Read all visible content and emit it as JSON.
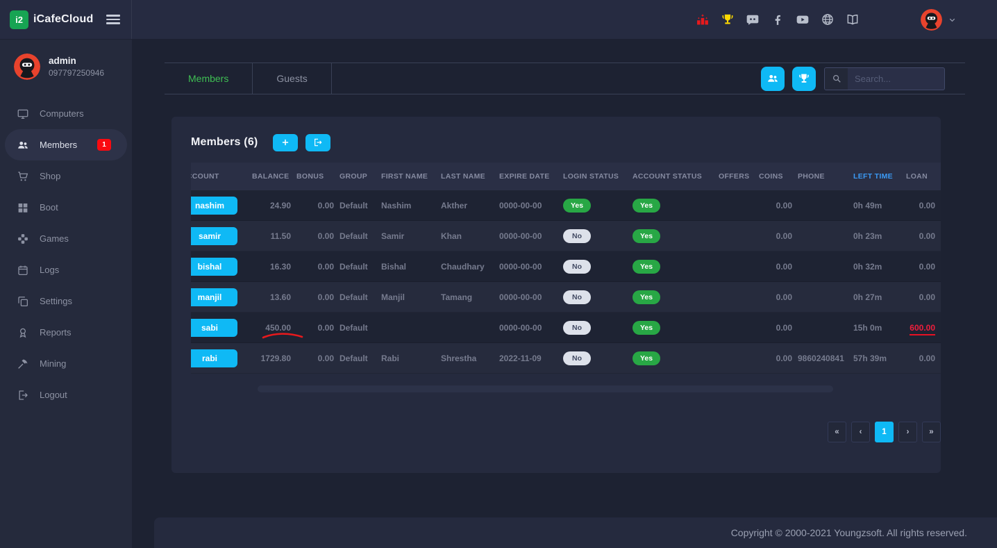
{
  "brand": {
    "name": "iCafeCloud",
    "logo_text": "i2"
  },
  "topbar": {
    "icons": [
      {
        "name": "ranking-icon",
        "color": "#e8191c"
      },
      {
        "name": "trophy-icon",
        "color": "#ffd900"
      },
      {
        "name": "discord-icon",
        "color": "#b9bfcc"
      },
      {
        "name": "facebook-icon",
        "color": "#b9bfcc"
      },
      {
        "name": "youtube-icon",
        "color": "#b9bfcc"
      },
      {
        "name": "globe-icon",
        "color": "#b9bfcc"
      },
      {
        "name": "book-icon",
        "color": "#b9bfcc"
      }
    ]
  },
  "user": {
    "name": "admin",
    "phone": "097797250946"
  },
  "sidebar": {
    "items": [
      {
        "label": "Computers",
        "icon": "monitor-icon"
      },
      {
        "label": "Members",
        "icon": "members-icon",
        "active": true,
        "badge": "1"
      },
      {
        "label": "Shop",
        "icon": "cart-icon"
      },
      {
        "label": "Boot",
        "icon": "windows-icon"
      },
      {
        "label": "Games",
        "icon": "gamepad-icon"
      },
      {
        "label": "Logs",
        "icon": "calendar-icon"
      },
      {
        "label": "Settings",
        "icon": "layers-icon"
      },
      {
        "label": "Reports",
        "icon": "medal-icon"
      },
      {
        "label": "Mining",
        "icon": "hammer-icon"
      },
      {
        "label": "Logout",
        "icon": "logout-icon"
      }
    ]
  },
  "tabs": [
    {
      "label": "Members",
      "active": true
    },
    {
      "label": "Guests",
      "active": false
    }
  ],
  "toolbar": {
    "buttons": [
      {
        "name": "members-view-button",
        "icon": "members-icon"
      },
      {
        "name": "tournament-view-button",
        "icon": "trophy-icon"
      }
    ]
  },
  "search": {
    "placeholder": "Search..."
  },
  "panel": {
    "title": "Members (6)",
    "add_button_icon": "plus-icon",
    "export_button_icon": "export-icon"
  },
  "table": {
    "headers": [
      {
        "label": "ACCOUNT"
      },
      {
        "label": "BALANCE"
      },
      {
        "label": "BONUS"
      },
      {
        "label": "GROUP"
      },
      {
        "label": "FIRST NAME"
      },
      {
        "label": "LAST NAME"
      },
      {
        "label": "EXPIRE DATE"
      },
      {
        "label": "LOGIN STATUS"
      },
      {
        "label": "ACCOUNT STATUS"
      },
      {
        "label": "OFFERS"
      },
      {
        "label": "COINS"
      },
      {
        "label": "PHONE"
      },
      {
        "label": "LEFT TIME",
        "highlight": true
      },
      {
        "label": "LOAN"
      }
    ],
    "rows": [
      {
        "account": "nashim",
        "balance": "24.90",
        "balance_annotated": false,
        "bonus": "0.00",
        "group": "Default",
        "first_name": "Nashim",
        "last_name": "Akther",
        "expire_date": "0000-00-00",
        "login_status": "Yes",
        "account_status": "Yes",
        "offers": "",
        "coins": "0.00",
        "phone": "",
        "left_time": "0h 49m",
        "loan": "0.00",
        "loan_alert": false
      },
      {
        "account": "samir",
        "balance": "11.50",
        "balance_annotated": false,
        "bonus": "0.00",
        "group": "Default",
        "first_name": "Samir",
        "last_name": "Khan",
        "expire_date": "0000-00-00",
        "login_status": "No",
        "account_status": "Yes",
        "offers": "",
        "coins": "0.00",
        "phone": "",
        "left_time": "0h 23m",
        "loan": "0.00",
        "loan_alert": false
      },
      {
        "account": "bishal",
        "balance": "16.30",
        "balance_annotated": false,
        "bonus": "0.00",
        "group": "Default",
        "first_name": "Bishal",
        "last_name": "Chaudhary",
        "expire_date": "0000-00-00",
        "login_status": "No",
        "account_status": "Yes",
        "offers": "",
        "coins": "0.00",
        "phone": "",
        "left_time": "0h 32m",
        "loan": "0.00",
        "loan_alert": false
      },
      {
        "account": "manjil",
        "balance": "13.60",
        "balance_annotated": false,
        "bonus": "0.00",
        "group": "Default",
        "first_name": "Manjil",
        "last_name": "Tamang",
        "expire_date": "0000-00-00",
        "login_status": "No",
        "account_status": "Yes",
        "offers": "",
        "coins": "0.00",
        "phone": "",
        "left_time": "0h 27m",
        "loan": "0.00",
        "loan_alert": false
      },
      {
        "account": "sabi",
        "balance": "450.00",
        "balance_annotated": true,
        "bonus": "0.00",
        "group": "Default",
        "first_name": "",
        "last_name": "",
        "expire_date": "0000-00-00",
        "login_status": "No",
        "account_status": "Yes",
        "offers": "",
        "coins": "0.00",
        "phone": "",
        "left_time": "15h 0m",
        "loan": "600.00",
        "loan_alert": true
      },
      {
        "account": "rabi",
        "balance": "1729.80",
        "balance_annotated": false,
        "bonus": "0.00",
        "group": "Default",
        "first_name": "Rabi",
        "last_name": "Shrestha",
        "expire_date": "2022-11-09",
        "login_status": "No",
        "account_status": "Yes",
        "offers": "",
        "coins": "0.00",
        "phone": "9860240841",
        "left_time": "57h 39m",
        "loan": "0.00",
        "loan_alert": false
      }
    ]
  },
  "pagination": {
    "items": [
      {
        "label": "«"
      },
      {
        "label": "‹"
      },
      {
        "label": "1",
        "active": true
      },
      {
        "label": "›"
      },
      {
        "label": "»"
      }
    ]
  },
  "footer": {
    "copyright": "Copyright © 2000-2021 Youngzsoft. All rights reserved."
  },
  "colors": {
    "accent": "#0fb9f5",
    "brand_green": "#17a453",
    "tab_active_green": "#3fbf53",
    "status_yes_green": "#28a745",
    "notification_red": "#fa0a10",
    "annotation_red": "#e8191c",
    "loan_red": "#ef1e3c",
    "sorted_header_blue": "#3b9af5",
    "avatar_red": "#e8432d",
    "trophy_yellow": "#ffd900"
  }
}
